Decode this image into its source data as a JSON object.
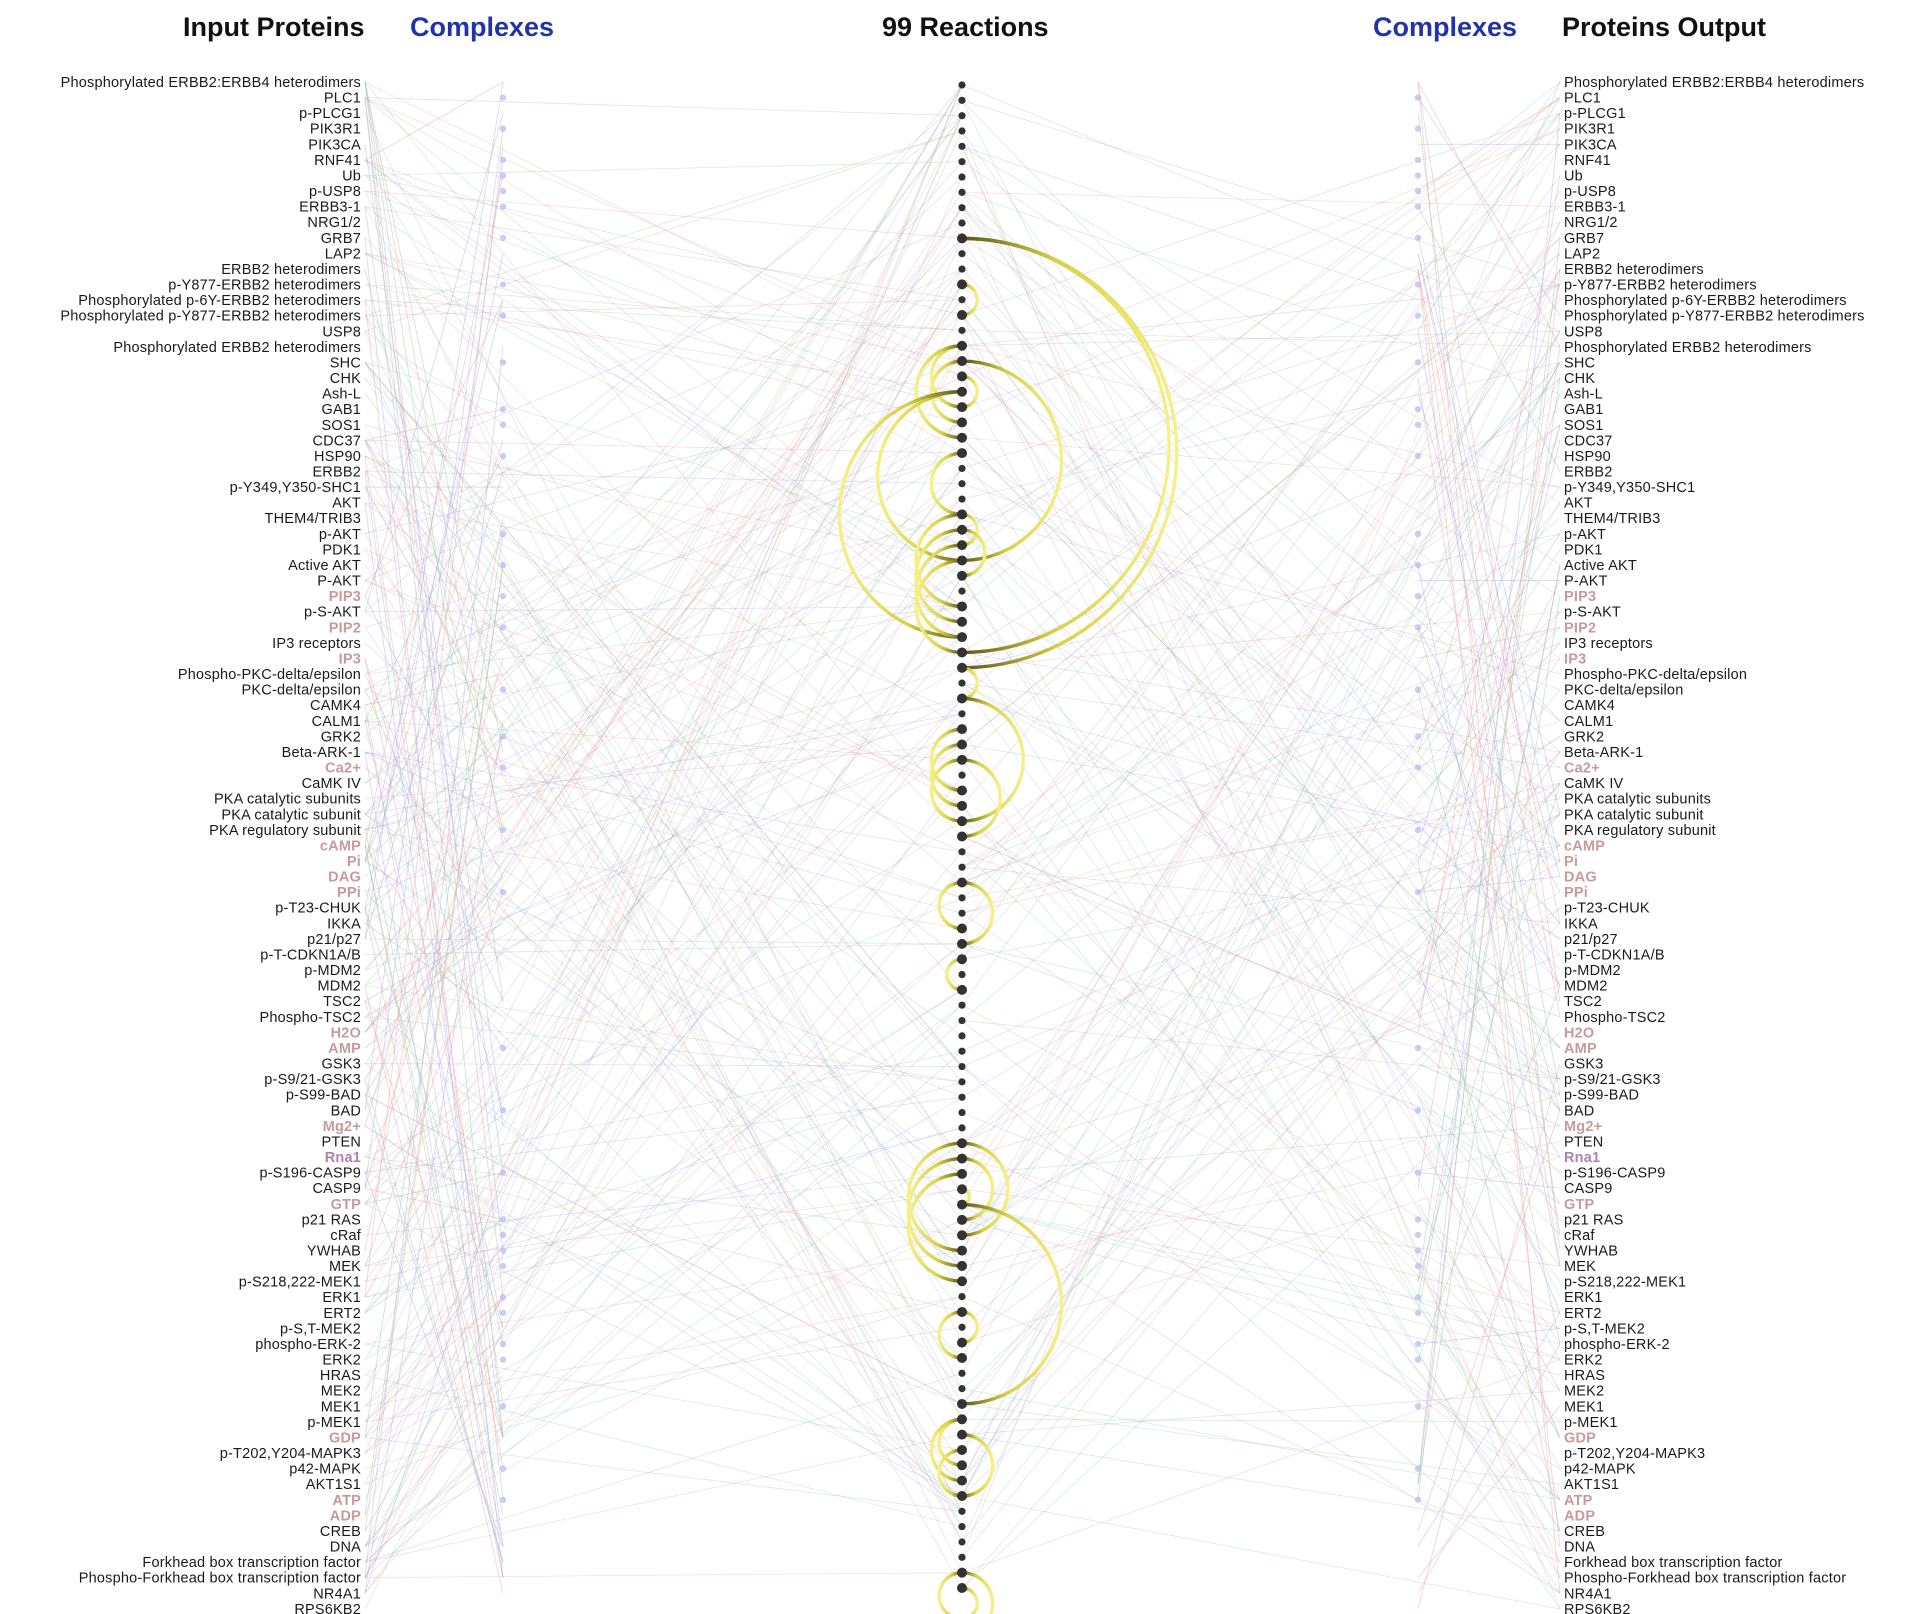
{
  "headers": {
    "input_proteins": "Input Proteins",
    "complexes_left": "Complexes",
    "reactions": "99 Reactions",
    "complexes_right": "Complexes",
    "proteins_output": "Proteins Output"
  },
  "proteins": [
    {
      "label": "Phosphorylated ERBB2:ERBB4 heterodimers",
      "kind": "protein"
    },
    {
      "label": "PLC1",
      "kind": "protein"
    },
    {
      "label": "p-PLCG1",
      "kind": "protein"
    },
    {
      "label": "PIK3R1",
      "kind": "protein"
    },
    {
      "label": "PIK3CA",
      "kind": "protein"
    },
    {
      "label": "RNF41",
      "kind": "protein"
    },
    {
      "label": "Ub",
      "kind": "protein"
    },
    {
      "label": "p-USP8",
      "kind": "protein"
    },
    {
      "label": "ERBB3-1",
      "kind": "protein"
    },
    {
      "label": "NRG1/2",
      "kind": "protein"
    },
    {
      "label": "GRB7",
      "kind": "protein"
    },
    {
      "label": "LAP2",
      "kind": "protein"
    },
    {
      "label": "ERBB2 heterodimers",
      "kind": "protein"
    },
    {
      "label": "p-Y877-ERBB2 heterodimers",
      "kind": "protein"
    },
    {
      "label": "Phosphorylated p-6Y-ERBB2 heterodimers",
      "kind": "protein"
    },
    {
      "label": "Phosphorylated p-Y877-ERBB2 heterodimers",
      "kind": "protein"
    },
    {
      "label": "USP8",
      "kind": "protein"
    },
    {
      "label": "Phosphorylated ERBB2 heterodimers",
      "kind": "protein"
    },
    {
      "label": "SHC",
      "kind": "protein"
    },
    {
      "label": "CHK",
      "kind": "protein"
    },
    {
      "label": "Ash-L",
      "kind": "protein"
    },
    {
      "label": "GAB1",
      "kind": "protein"
    },
    {
      "label": "SOS1",
      "kind": "protein"
    },
    {
      "label": "CDC37",
      "kind": "protein"
    },
    {
      "label": "HSP90",
      "kind": "protein"
    },
    {
      "label": "ERBB2",
      "kind": "protein"
    },
    {
      "label": "p-Y349,Y350-SHC1",
      "kind": "protein"
    },
    {
      "label": "AKT",
      "kind": "protein"
    },
    {
      "label": "THEM4/TRIB3",
      "kind": "protein"
    },
    {
      "label": "p-AKT",
      "kind": "protein"
    },
    {
      "label": "PDK1",
      "kind": "protein"
    },
    {
      "label": "Active AKT",
      "kind": "protein"
    },
    {
      "label": "P-AKT",
      "kind": "protein"
    },
    {
      "label": "PIP3",
      "kind": "small"
    },
    {
      "label": "p-S-AKT",
      "kind": "protein"
    },
    {
      "label": "PIP2",
      "kind": "small"
    },
    {
      "label": "IP3 receptors",
      "kind": "protein"
    },
    {
      "label": "IP3",
      "kind": "small"
    },
    {
      "label": "Phospho-PKC-delta/epsilon",
      "kind": "protein"
    },
    {
      "label": "PKC-delta/epsilon",
      "kind": "protein"
    },
    {
      "label": "CAMK4",
      "kind": "protein"
    },
    {
      "label": "CALM1",
      "kind": "protein"
    },
    {
      "label": "GRK2",
      "kind": "protein"
    },
    {
      "label": "Beta-ARK-1",
      "kind": "protein"
    },
    {
      "label": "Ca2+",
      "kind": "small"
    },
    {
      "label": "CaMK IV",
      "kind": "protein"
    },
    {
      "label": "PKA catalytic subunits",
      "kind": "protein"
    },
    {
      "label": "PKA catalytic subunit",
      "kind": "protein"
    },
    {
      "label": "PKA regulatory subunit",
      "kind": "protein"
    },
    {
      "label": "cAMP",
      "kind": "small"
    },
    {
      "label": "Pi",
      "kind": "small"
    },
    {
      "label": "DAG",
      "kind": "small"
    },
    {
      "label": "PPi",
      "kind": "small"
    },
    {
      "label": "p-T23-CHUK",
      "kind": "protein"
    },
    {
      "label": "IKKA",
      "kind": "protein"
    },
    {
      "label": "p21/p27",
      "kind": "protein"
    },
    {
      "label": "p-T-CDKN1A/B",
      "kind": "protein"
    },
    {
      "label": "p-MDM2",
      "kind": "protein"
    },
    {
      "label": "MDM2",
      "kind": "protein"
    },
    {
      "label": "TSC2",
      "kind": "protein"
    },
    {
      "label": "Phospho-TSC2",
      "kind": "protein"
    },
    {
      "label": "H2O",
      "kind": "small"
    },
    {
      "label": "AMP",
      "kind": "small"
    },
    {
      "label": "GSK3",
      "kind": "protein"
    },
    {
      "label": "p-S9/21-GSK3",
      "kind": "protein"
    },
    {
      "label": "p-S99-BAD",
      "kind": "protein"
    },
    {
      "label": "BAD",
      "kind": "protein"
    },
    {
      "label": "Mg2+",
      "kind": "small"
    },
    {
      "label": "PTEN",
      "kind": "protein"
    },
    {
      "label": "Rna1",
      "kind": "rna"
    },
    {
      "label": "p-S196-CASP9",
      "kind": "protein"
    },
    {
      "label": "CASP9",
      "kind": "protein"
    },
    {
      "label": "GTP",
      "kind": "small"
    },
    {
      "label": "p21 RAS",
      "kind": "protein"
    },
    {
      "label": "cRaf",
      "kind": "protein"
    },
    {
      "label": "YWHAB",
      "kind": "protein"
    },
    {
      "label": "MEK",
      "kind": "protein"
    },
    {
      "label": "p-S218,222-MEK1",
      "kind": "protein"
    },
    {
      "label": "ERK1",
      "kind": "protein"
    },
    {
      "label": "ERT2",
      "kind": "protein"
    },
    {
      "label": "p-S,T-MEK2",
      "kind": "protein"
    },
    {
      "label": "phospho-ERK-2",
      "kind": "protein"
    },
    {
      "label": "ERK2",
      "kind": "protein"
    },
    {
      "label": "HRAS",
      "kind": "protein"
    },
    {
      "label": "MEK2",
      "kind": "protein"
    },
    {
      "label": "MEK1",
      "kind": "protein"
    },
    {
      "label": "p-MEK1",
      "kind": "protein"
    },
    {
      "label": "GDP",
      "kind": "small"
    },
    {
      "label": "p-T202,Y204-MAPK3",
      "kind": "protein"
    },
    {
      "label": "p42-MAPK",
      "kind": "protein"
    },
    {
      "label": "AKT1S1",
      "kind": "protein"
    },
    {
      "label": "ATP",
      "kind": "small"
    },
    {
      "label": "ADP",
      "kind": "small"
    },
    {
      "label": "CREB",
      "kind": "protein"
    },
    {
      "label": "DNA",
      "kind": "protein"
    },
    {
      "label": "Forkhead box transcription factor",
      "kind": "protein"
    },
    {
      "label": "Phospho-Forkhead box transcription factor",
      "kind": "protein"
    },
    {
      "label": "NR4A1",
      "kind": "protein"
    },
    {
      "label": "RPS6KB2",
      "kind": "protein"
    }
  ],
  "reaction_count": 99,
  "arcs": [
    {
      "from": 10,
      "to": 38,
      "side": "right"
    },
    {
      "from": 10,
      "to": 37,
      "side": "right"
    },
    {
      "from": 13,
      "to": 15,
      "side": "right"
    },
    {
      "from": 17,
      "to": 21,
      "side": "left"
    },
    {
      "from": 17,
      "to": 23,
      "side": "left"
    },
    {
      "from": 18,
      "to": 22,
      "side": "left"
    },
    {
      "from": 19,
      "to": 21,
      "side": "right"
    },
    {
      "from": 18,
      "to": 31,
      "side": "right"
    },
    {
      "from": 20,
      "to": 31,
      "side": "left"
    },
    {
      "from": 20,
      "to": 36,
      "side": "left"
    },
    {
      "from": 24,
      "to": 28,
      "side": "left"
    },
    {
      "from": 28,
      "to": 30,
      "side": "right"
    },
    {
      "from": 28,
      "to": 34,
      "side": "left"
    },
    {
      "from": 29,
      "to": 35,
      "side": "left"
    },
    {
      "from": 30,
      "to": 36,
      "side": "left"
    },
    {
      "from": 31,
      "to": 37,
      "side": "left"
    },
    {
      "from": 29,
      "to": 32,
      "side": "right"
    },
    {
      "from": 38,
      "to": 40,
      "side": "right"
    },
    {
      "from": 40,
      "to": 48,
      "side": "right"
    },
    {
      "from": 42,
      "to": 46,
      "side": "left"
    },
    {
      "from": 43,
      "to": 47,
      "side": "left"
    },
    {
      "from": 44,
      "to": 49,
      "side": "right"
    },
    {
      "from": 44,
      "to": 48,
      "side": "left"
    },
    {
      "from": 52,
      "to": 56,
      "side": "right"
    },
    {
      "from": 52,
      "to": 55,
      "side": "left"
    },
    {
      "from": 57,
      "to": 59,
      "side": "left"
    },
    {
      "from": 69,
      "to": 75,
      "side": "right"
    },
    {
      "from": 69,
      "to": 76,
      "side": "left"
    },
    {
      "from": 70,
      "to": 77,
      "side": "left"
    },
    {
      "from": 71,
      "to": 78,
      "side": "left"
    },
    {
      "from": 70,
      "to": 74,
      "side": "right"
    },
    {
      "from": 72,
      "to": 73,
      "side": "right"
    },
    {
      "from": 73,
      "to": 86,
      "side": "right"
    },
    {
      "from": 80,
      "to": 83,
      "side": "left"
    },
    {
      "from": 80,
      "to": 82,
      "side": "right"
    },
    {
      "from": 87,
      "to": 90,
      "side": "left"
    },
    {
      "from": 87,
      "to": 91,
      "side": "left"
    },
    {
      "from": 88,
      "to": 92,
      "side": "right"
    },
    {
      "from": 89,
      "to": 92,
      "side": "left"
    },
    {
      "from": 97,
      "to": 100,
      "side": "left"
    },
    {
      "from": 97,
      "to": 101,
      "side": "right"
    },
    {
      "from": 98,
      "to": 100,
      "side": "right"
    }
  ],
  "colors": {
    "protein_text": "#1a1a1a",
    "small_molecule_text": "#c89a9a",
    "rna_text": "#b080b0",
    "complexes_header": "#2233aa",
    "reaction_node": "#333333",
    "arc_light": "#f4ee7a",
    "arc_dark": "#4a4a10",
    "edge_red": "#e8a0a0",
    "edge_green": "#90c8a0",
    "edge_blue": "#a8a8e8",
    "complex_node": "#b8bef0"
  }
}
